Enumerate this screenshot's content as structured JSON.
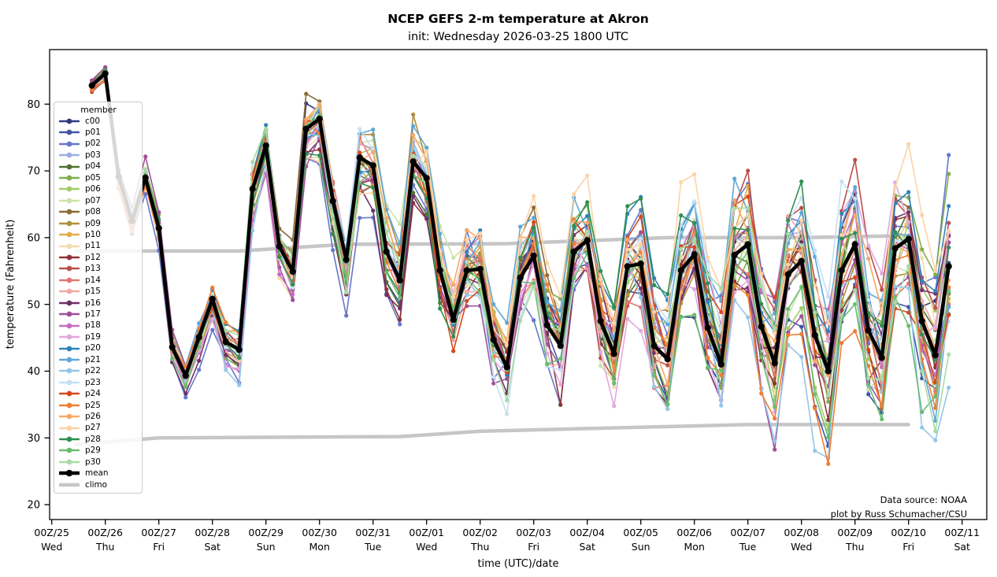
{
  "title": "NCEP GEFS 2-m temperature at Akron",
  "subtitle": "init: Wednesday 2026-03-25 1800 UTC",
  "annotation": {
    "line1": "Data source: NOAA",
    "line2": "plot by Russ Schumacher/CSU"
  },
  "axes": {
    "ylabel": "temperature (Fahrenheit)",
    "xlabel": "time (UTC)/date",
    "y_ticks": [
      20,
      30,
      40,
      50,
      60,
      70,
      80
    ],
    "ylim": [
      17.8,
      88.2
    ],
    "x_ticks": [
      {
        "utc": "00Z/25",
        "day": "Wed"
      },
      {
        "utc": "00Z/26",
        "day": "Thu"
      },
      {
        "utc": "00Z/27",
        "day": "Fri"
      },
      {
        "utc": "00Z/28",
        "day": "Sat"
      },
      {
        "utc": "00Z/29",
        "day": "Sun"
      },
      {
        "utc": "00Z/30",
        "day": "Mon"
      },
      {
        "utc": "00Z/31",
        "day": "Tue"
      },
      {
        "utc": "00Z/01",
        "day": "Wed"
      },
      {
        "utc": "00Z/02",
        "day": "Thu"
      },
      {
        "utc": "00Z/03",
        "day": "Fri"
      },
      {
        "utc": "00Z/04",
        "day": "Sat"
      },
      {
        "utc": "00Z/05",
        "day": "Sun"
      },
      {
        "utc": "00Z/06",
        "day": "Mon"
      },
      {
        "utc": "00Z/07",
        "day": "Tue"
      },
      {
        "utc": "00Z/08",
        "day": "Wed"
      },
      {
        "utc": "00Z/09",
        "day": "Thu"
      },
      {
        "utc": "00Z/10",
        "day": "Fri"
      },
      {
        "utc": "00Z/11",
        "day": "Sat"
      }
    ]
  },
  "legend": {
    "title": "member",
    "entries": [
      {
        "label": "c00",
        "color": "#2f3a7d",
        "kind": "member"
      },
      {
        "label": "p01",
        "color": "#4355a8",
        "kind": "member"
      },
      {
        "label": "p02",
        "color": "#6677cc",
        "kind": "member"
      },
      {
        "label": "p03",
        "color": "#9daee3",
        "kind": "member"
      },
      {
        "label": "p04",
        "color": "#4f7233",
        "kind": "member"
      },
      {
        "label": "p05",
        "color": "#7fae4e",
        "kind": "member"
      },
      {
        "label": "p06",
        "color": "#a3cc67",
        "kind": "member"
      },
      {
        "label": "p07",
        "color": "#cce3a8",
        "kind": "member"
      },
      {
        "label": "p08",
        "color": "#8a6b35",
        "kind": "member"
      },
      {
        "label": "p09",
        "color": "#b28f3e",
        "kind": "member"
      },
      {
        "label": "p10",
        "color": "#e3ab4c",
        "kind": "member"
      },
      {
        "label": "p11",
        "color": "#f2dcab",
        "kind": "member"
      },
      {
        "label": "p12",
        "color": "#8f3338",
        "kind": "member"
      },
      {
        "label": "p13",
        "color": "#bb4f4c",
        "kind": "member"
      },
      {
        "label": "p14",
        "color": "#e27672",
        "kind": "member"
      },
      {
        "label": "p15",
        "color": "#f2a8a4",
        "kind": "member"
      },
      {
        "label": "p16",
        "color": "#6f3069",
        "kind": "member"
      },
      {
        "label": "p17",
        "color": "#9f5098",
        "kind": "member"
      },
      {
        "label": "p18",
        "color": "#c76cc2",
        "kind": "member"
      },
      {
        "label": "p19",
        "color": "#e2a8de",
        "kind": "member"
      },
      {
        "label": "p20",
        "color": "#2f82bd",
        "kind": "member"
      },
      {
        "label": "p21",
        "color": "#5fa8d8",
        "kind": "member"
      },
      {
        "label": "p22",
        "color": "#93c7e8",
        "kind": "member"
      },
      {
        "label": "p23",
        "color": "#c6e0f2",
        "kind": "member"
      },
      {
        "label": "p24",
        "color": "#d64a1e",
        "kind": "member"
      },
      {
        "label": "p25",
        "color": "#f07d33",
        "kind": "member"
      },
      {
        "label": "p26",
        "color": "#f7a866",
        "kind": "member"
      },
      {
        "label": "p27",
        "color": "#fdd3a6",
        "kind": "member"
      },
      {
        "label": "p28",
        "color": "#2f8f52",
        "kind": "member"
      },
      {
        "label": "p29",
        "color": "#69bd6e",
        "kind": "member"
      },
      {
        "label": "p30",
        "color": "#a8dba6",
        "kind": "member"
      },
      {
        "label": "mean",
        "color": "#000000",
        "kind": "mean"
      },
      {
        "label": "climo",
        "color": "#c6c6c6",
        "kind": "climo"
      }
    ]
  },
  "chart_data": {
    "type": "line",
    "x_start": "1800 UTC 2026-03-25",
    "x_step_hours": 6,
    "n_points": 65,
    "x_axis_span_days": [
      "00Z Mar 25",
      "00Z Apr 11"
    ],
    "ylabel": "temperature (Fahrenheit)",
    "ylim": [
      17.8,
      88.2
    ],
    "members": [
      "c00",
      "p01",
      "p02",
      "p03",
      "p04",
      "p05",
      "p06",
      "p07",
      "p08",
      "p09",
      "p10",
      "p11",
      "p12",
      "p13",
      "p14",
      "p15",
      "p16",
      "p17",
      "p18",
      "p19",
      "p20",
      "p21",
      "p22",
      "p23",
      "p24",
      "p25",
      "p26",
      "p27",
      "p28",
      "p29",
      "p30"
    ],
    "ensemble_spread_f_start": 1.5,
    "ensemble_spread_f_end": 12.5,
    "mean": [
      82.8,
      84.6,
      69.1,
      62.5,
      69.0,
      61.4,
      43.6,
      39.3,
      45.1,
      50.8,
      44.4,
      43.2,
      67.3,
      73.8,
      58.7,
      54.9,
      76.3,
      77.8,
      65.5,
      56.7,
      72.0,
      70.8,
      57.9,
      53.6,
      71.4,
      68.9,
      55.1,
      47.7,
      55.1,
      55.3,
      44.7,
      40.6,
      54.0,
      57.3,
      46.9,
      43.8,
      57.9,
      59.6,
      47.5,
      42.6,
      55.7,
      56.1,
      43.8,
      41.8,
      55.1,
      57.5,
      46.5,
      41.0,
      57.4,
      59.0,
      46.7,
      41.2,
      54.5,
      56.5,
      45.4,
      40.0,
      55.1,
      59.0,
      46.1,
      42.0,
      58.4,
      59.8,
      47.5,
      42.4,
      55.7
    ],
    "climo_upper": {
      "days": [
        0.45,
        3.5,
        5.5,
        8.5,
        9.5,
        11.5,
        14.0,
        16.0
      ],
      "values": [
        58.0,
        58.0,
        59.0,
        59.1,
        59.4,
        60.0,
        60.0,
        60.3
      ]
    },
    "climo_lower": {
      "days": [
        0.45,
        2.0,
        6.5,
        8.0,
        10.0,
        13.0,
        16.0
      ],
      "values": [
        29.0,
        30.0,
        30.2,
        31.0,
        31.4,
        32.0,
        32.0
      ]
    }
  }
}
